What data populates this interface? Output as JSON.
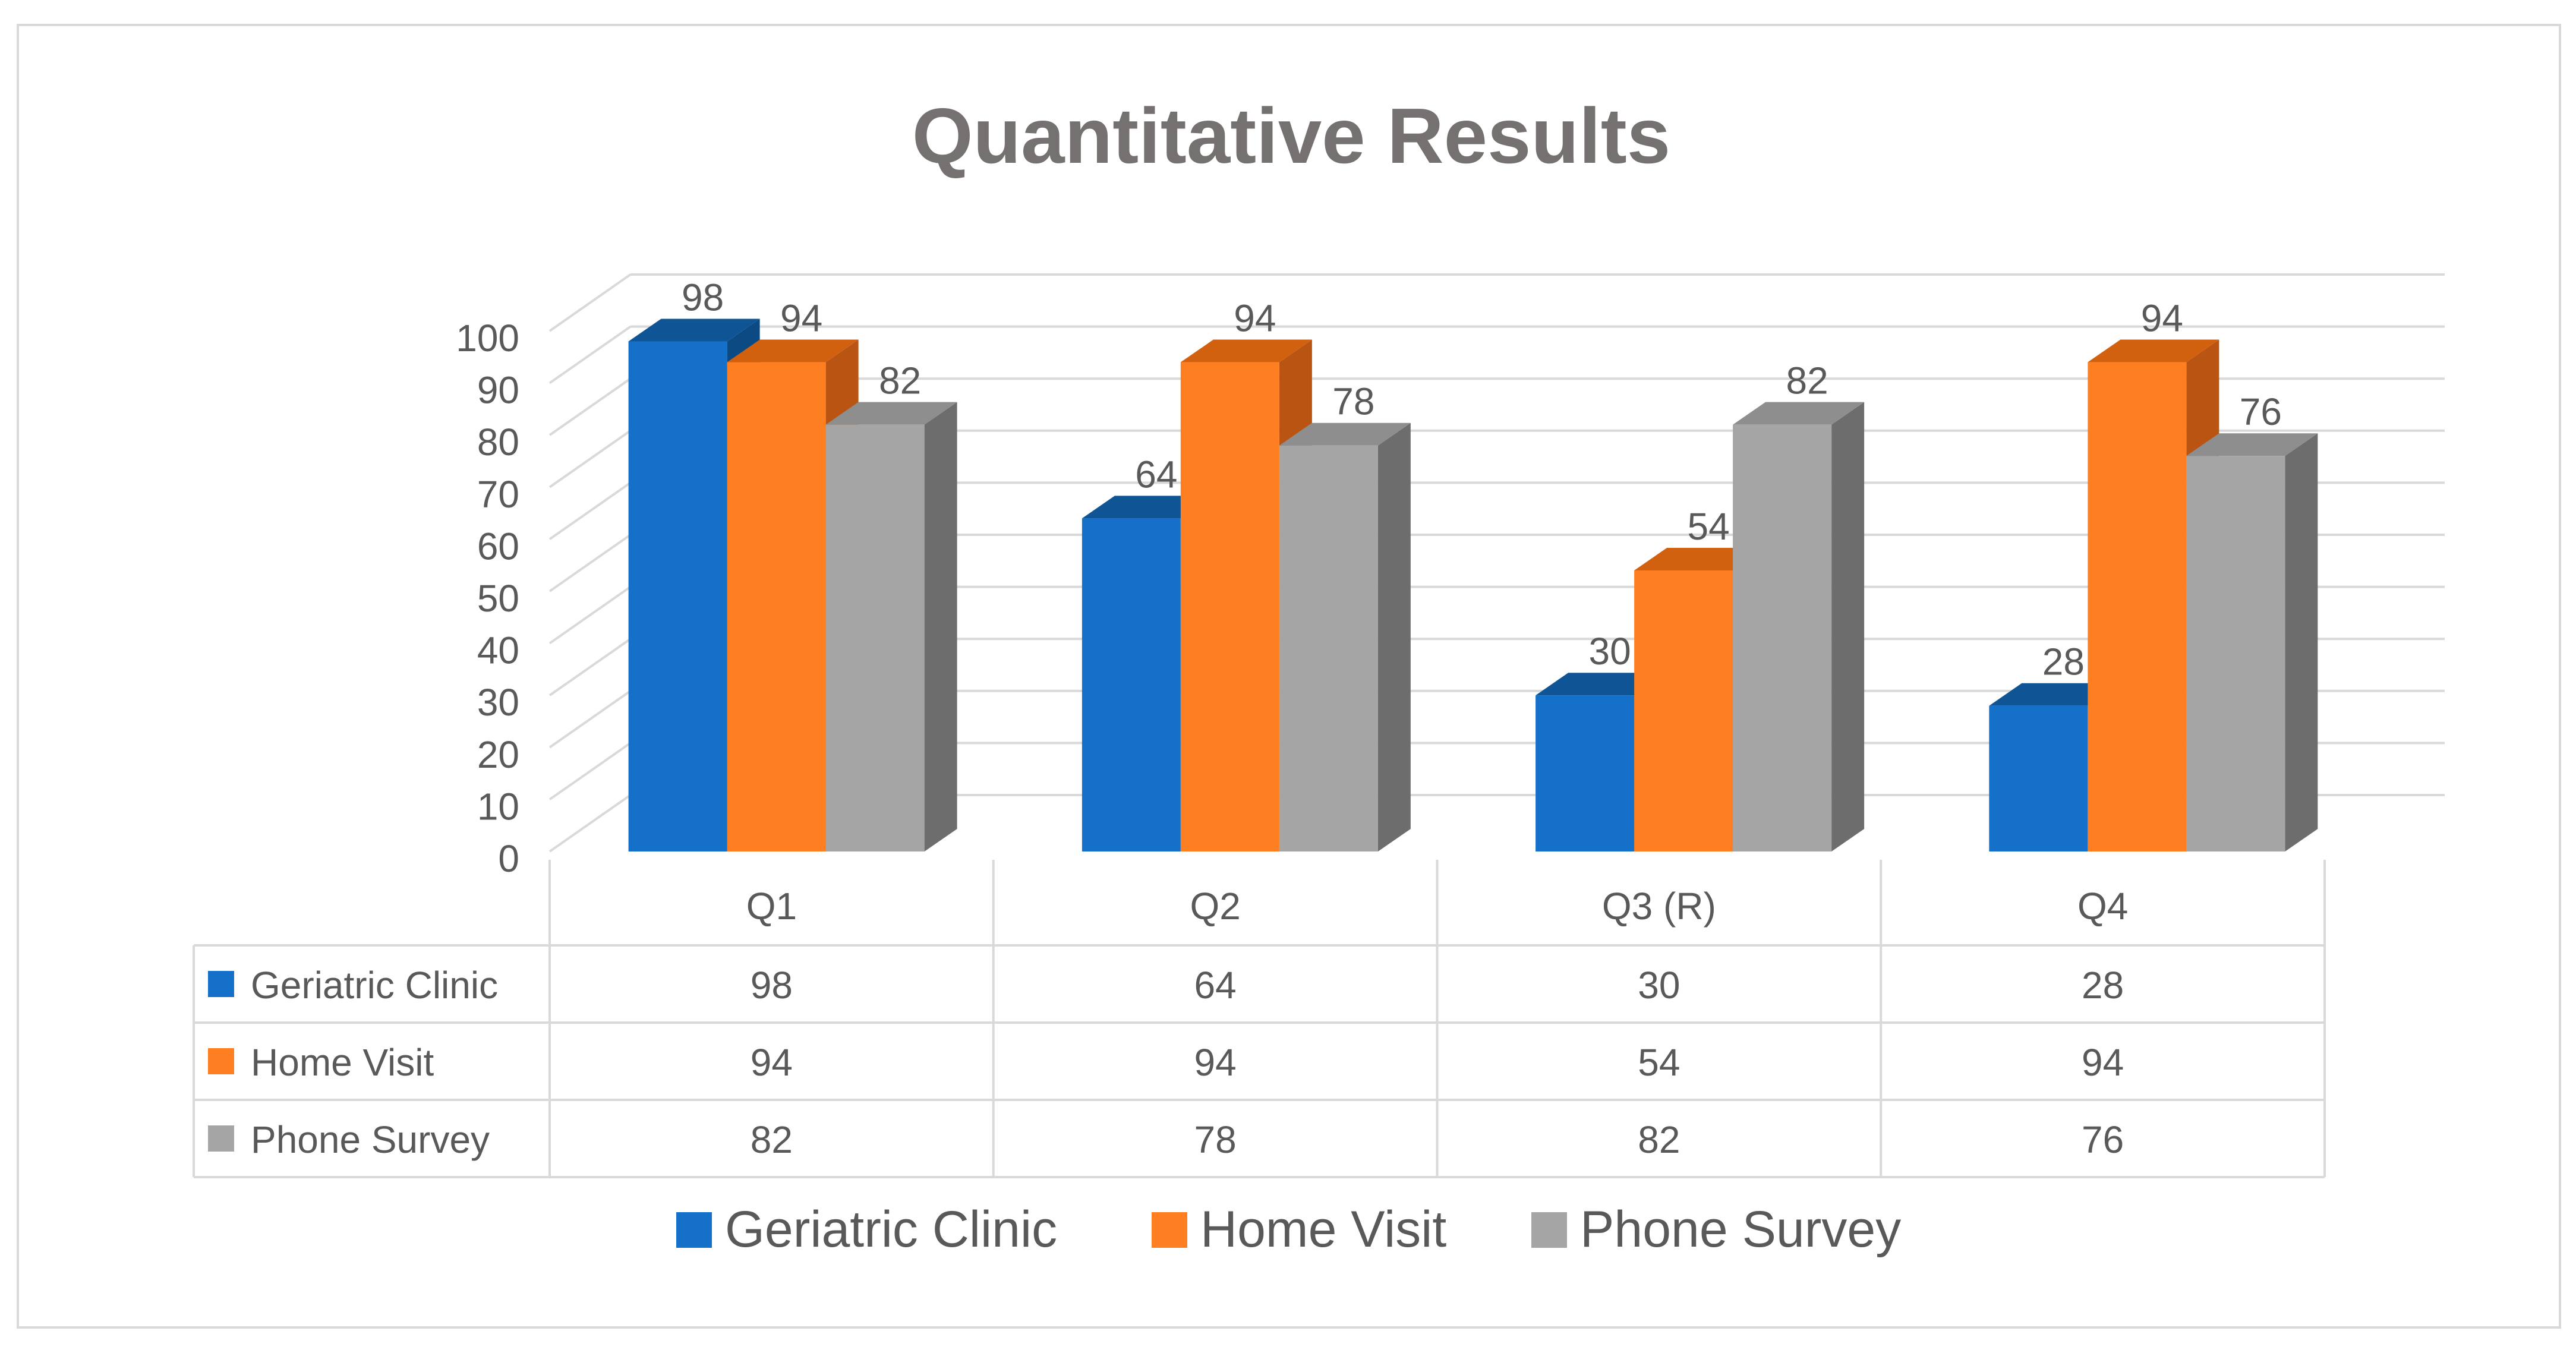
{
  "chart_data": {
    "type": "bar",
    "title": "Quantitative Results",
    "categories": [
      "Q1",
      "Q2",
      "Q3 (R)",
      "Q4"
    ],
    "series": [
      {
        "name": "Geriatric Clinic",
        "values": [
          98,
          64,
          30,
          28
        ]
      },
      {
        "name": "Home Visit",
        "values": [
          94,
          94,
          54,
          94
        ]
      },
      {
        "name": "Phone Survey",
        "values": [
          82,
          78,
          82,
          76
        ]
      }
    ],
    "ylim": [
      0,
      100
    ],
    "yticks": [
      0,
      10,
      20,
      30,
      40,
      50,
      60,
      70,
      80,
      90,
      100
    ],
    "grid": true,
    "style": "3d-column",
    "data_table": true,
    "legend_position": "bottom",
    "colors": {
      "Geriatric Clinic": {
        "front": "#1470c8",
        "top": "#0f5596",
        "side": "#0c4a84"
      },
      "Home Visit": {
        "front": "#fe7f22",
        "top": "#d2610f",
        "side": "#b95413"
      },
      "Phone Survey": {
        "front": "#a5a5a5",
        "top": "#8e8e8e",
        "side": "#6d6d6d"
      },
      "grid": "#d9d9d9",
      "text": "#595959",
      "title": "#767171"
    }
  }
}
